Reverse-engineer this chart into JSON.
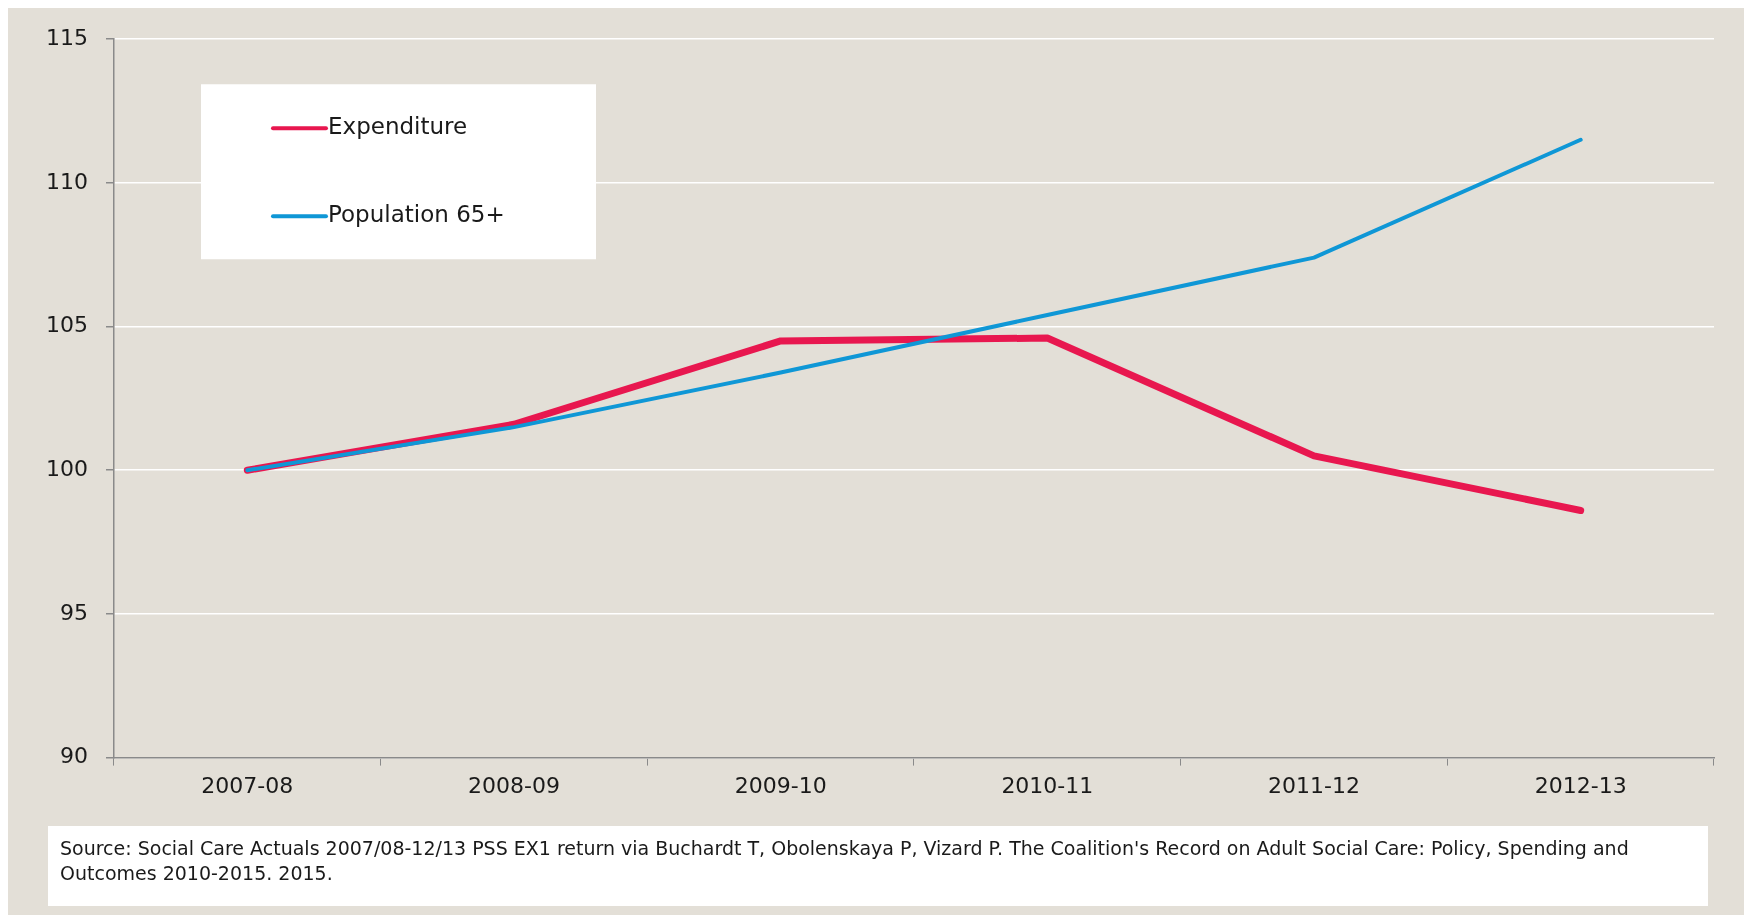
{
  "chart_data": {
    "type": "line",
    "categories": [
      "2007-08",
      "2008-09",
      "2009-10",
      "2010-11",
      "2011-12",
      "2012-13"
    ],
    "series": [
      {
        "name": "Expenditure",
        "color": "#e8174f",
        "values": [
          100,
          101.6,
          104.5,
          104.6,
          100.5,
          98.6
        ]
      },
      {
        "name": "Population 65+",
        "color": "#0f97d6",
        "values": [
          100,
          101.5,
          103.4,
          105.4,
          107.4,
          111.5
        ]
      }
    ],
    "ylim": [
      90,
      115
    ],
    "yticks": [
      90,
      95,
      100,
      105,
      110,
      115
    ],
    "grid": "y",
    "legend": "top left",
    "marker": "none",
    "line_style": "solid",
    "annotations": [
      "Source: Social Care Actuals 2007/08-12/13 PSS EX1 return via Buchardt T, Obolenskaya P, Vizard P. The Coalition's Record on Adult Social Care: Policy, Spending and Outcomes 2010-2015. 2015."
    ]
  }
}
